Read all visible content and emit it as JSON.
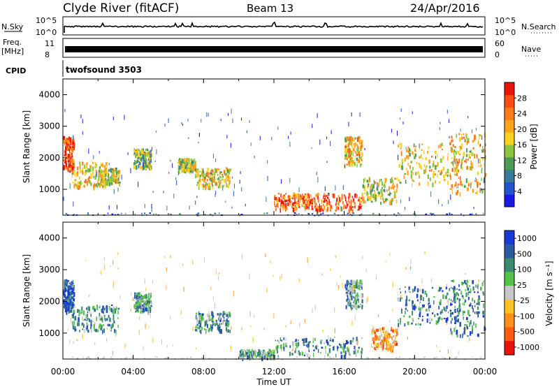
{
  "header": {
    "station": "Clyde River (fitACF)",
    "beam": "Beam 13",
    "date": "24/Apr/2016"
  },
  "strips": {
    "nsky_label": "N.Sky",
    "nsky_ticks": [
      "10^5",
      "10^0"
    ],
    "nsearch_label": "N.Search",
    "nsearch_ticks": [
      "10^5",
      "10^0"
    ],
    "freq_label_1": "Freq.",
    "freq_label_2": "[MHz]",
    "freq_ticks": [
      "11",
      "8"
    ],
    "nave_label": "Nave",
    "nave_ticks": [
      "60",
      "0"
    ],
    "cpid_label": "CPID",
    "cpid_value": "twofsound 3503"
  },
  "chart_data": [
    {
      "type": "heatmap",
      "title": "",
      "ylabel": "Slant Range [km]",
      "xlabel": "",
      "x_ticks": [
        "00:00",
        "04:00",
        "08:00",
        "12:00",
        "16:00",
        "20:00",
        "00:00"
      ],
      "y_ticks": [
        "1000",
        "2000",
        "3000",
        "4000"
      ],
      "ylim": [
        180,
        4500
      ],
      "xlim_hours": [
        0,
        24
      ],
      "colorbar": {
        "label": "Power [dB]",
        "ticks": [
          "4",
          "8",
          "12",
          "16",
          "20",
          "24",
          "28"
        ],
        "colors": [
          "#1a1ae6",
          "#2255cc",
          "#3a7a9a",
          "#4f9a55",
          "#8cc63f",
          "#ffd21e",
          "#ffa31e",
          "#ff7a18",
          "#ff4a12",
          "#e8140a"
        ]
      },
      "scatter_regions": [
        {
          "t": [
            0.0,
            0.6
          ],
          "r": [
            1600,
            2700
          ],
          "level": 0.85
        },
        {
          "t": [
            0.5,
            2.5
          ],
          "r": [
            1100,
            1900
          ],
          "level": 0.55
        },
        {
          "t": [
            2.0,
            3.2
          ],
          "r": [
            1200,
            1700
          ],
          "level": 0.5
        },
        {
          "t": [
            4.0,
            5.0
          ],
          "r": [
            1700,
            2300
          ],
          "level": 0.4
        },
        {
          "t": [
            6.5,
            7.5
          ],
          "r": [
            1600,
            2000
          ],
          "level": 0.45
        },
        {
          "t": [
            7.5,
            9.5
          ],
          "r": [
            1100,
            1700
          ],
          "level": 0.55
        },
        {
          "t": [
            12.0,
            14.0
          ],
          "r": [
            400,
            900
          ],
          "level": 0.8
        },
        {
          "t": [
            14.0,
            17.0
          ],
          "r": [
            350,
            900
          ],
          "level": 0.85
        },
        {
          "t": [
            16.0,
            17.0
          ],
          "r": [
            1800,
            2700
          ],
          "level": 0.6
        },
        {
          "t": [
            17.0,
            19.0
          ],
          "r": [
            600,
            1400
          ],
          "level": 0.5
        },
        {
          "t": [
            19.0,
            22.5
          ],
          "r": [
            1200,
            2500
          ],
          "level": 0.55
        },
        {
          "t": [
            22.0,
            24.0
          ],
          "r": [
            900,
            2800
          ],
          "level": 0.6
        }
      ]
    },
    {
      "type": "heatmap",
      "title": "",
      "ylabel": "Slant Range [km]",
      "xlabel": "Time UT",
      "x_ticks": [
        "00:00",
        "04:00",
        "08:00",
        "12:00",
        "16:00",
        "20:00",
        "00:00"
      ],
      "y_ticks": [
        "1000",
        "2000",
        "3000",
        "4000"
      ],
      "ylim": [
        180,
        4500
      ],
      "xlim_hours": [
        0,
        24
      ],
      "colorbar": {
        "label": "Velocity [m s⁻¹]",
        "ticks": [
          "1000",
          "500",
          "100",
          "25",
          "-25",
          "-100",
          "-500",
          "-1000"
        ],
        "colors": [
          "#1a3ad6",
          "#2a5aa0",
          "#3a8a70",
          "#55c24a",
          "#c8c8c8",
          "#ffc21e",
          "#ff9018",
          "#ff5a12",
          "#e8140a"
        ]
      },
      "scatter_regions": [
        {
          "t": [
            0.0,
            0.6
          ],
          "r": [
            1700,
            2700
          ],
          "level": 0.9
        },
        {
          "t": [
            0.5,
            3.2
          ],
          "r": [
            1100,
            1900
          ],
          "level": 0.7
        },
        {
          "t": [
            4.0,
            5.0
          ],
          "r": [
            1700,
            2300
          ],
          "level": 0.7
        },
        {
          "t": [
            7.5,
            9.5
          ],
          "r": [
            1100,
            1700
          ],
          "level": 0.7
        },
        {
          "t": [
            10.0,
            12.0
          ],
          "r": [
            250,
            500
          ],
          "level": 0.65
        },
        {
          "t": [
            12.0,
            17.0
          ],
          "r": [
            300,
            900
          ],
          "level": 0.7
        },
        {
          "t": [
            16.0,
            17.0
          ],
          "r": [
            1800,
            2700
          ],
          "level": 0.7
        },
        {
          "t": [
            17.5,
            19.0
          ],
          "r": [
            500,
            1200
          ],
          "level": 0.3
        },
        {
          "t": [
            19.0,
            22.5
          ],
          "r": [
            1300,
            2500
          ],
          "level": 0.75
        },
        {
          "t": [
            22.0,
            24.0
          ],
          "r": [
            900,
            2700
          ],
          "level": 0.8
        }
      ]
    }
  ]
}
